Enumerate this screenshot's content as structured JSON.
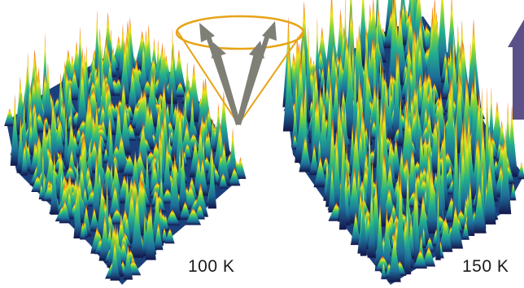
{
  "panels": [
    {
      "id": "left",
      "temperature_label": "100 K"
    },
    {
      "id": "right",
      "temperature_label": "150 K"
    }
  ],
  "cone": {
    "arrow_count": 4
  },
  "field_arrow": {
    "direction": "up"
  },
  "colors": {
    "background": "#ffffff",
    "surface_low": "#14144a",
    "surface_mid_low": "#1e6f9a",
    "surface_mid": "#22b08c",
    "surface_mid_high": "#7ed23a",
    "surface_high_yellow": "#f2e21e",
    "surface_high_orange": "#f49a1a",
    "surface_peak": "#e8301c",
    "cone_outline": "#e8a317",
    "cone_arrows": "#7f7f76",
    "field_arrow": "#5b5088"
  }
}
